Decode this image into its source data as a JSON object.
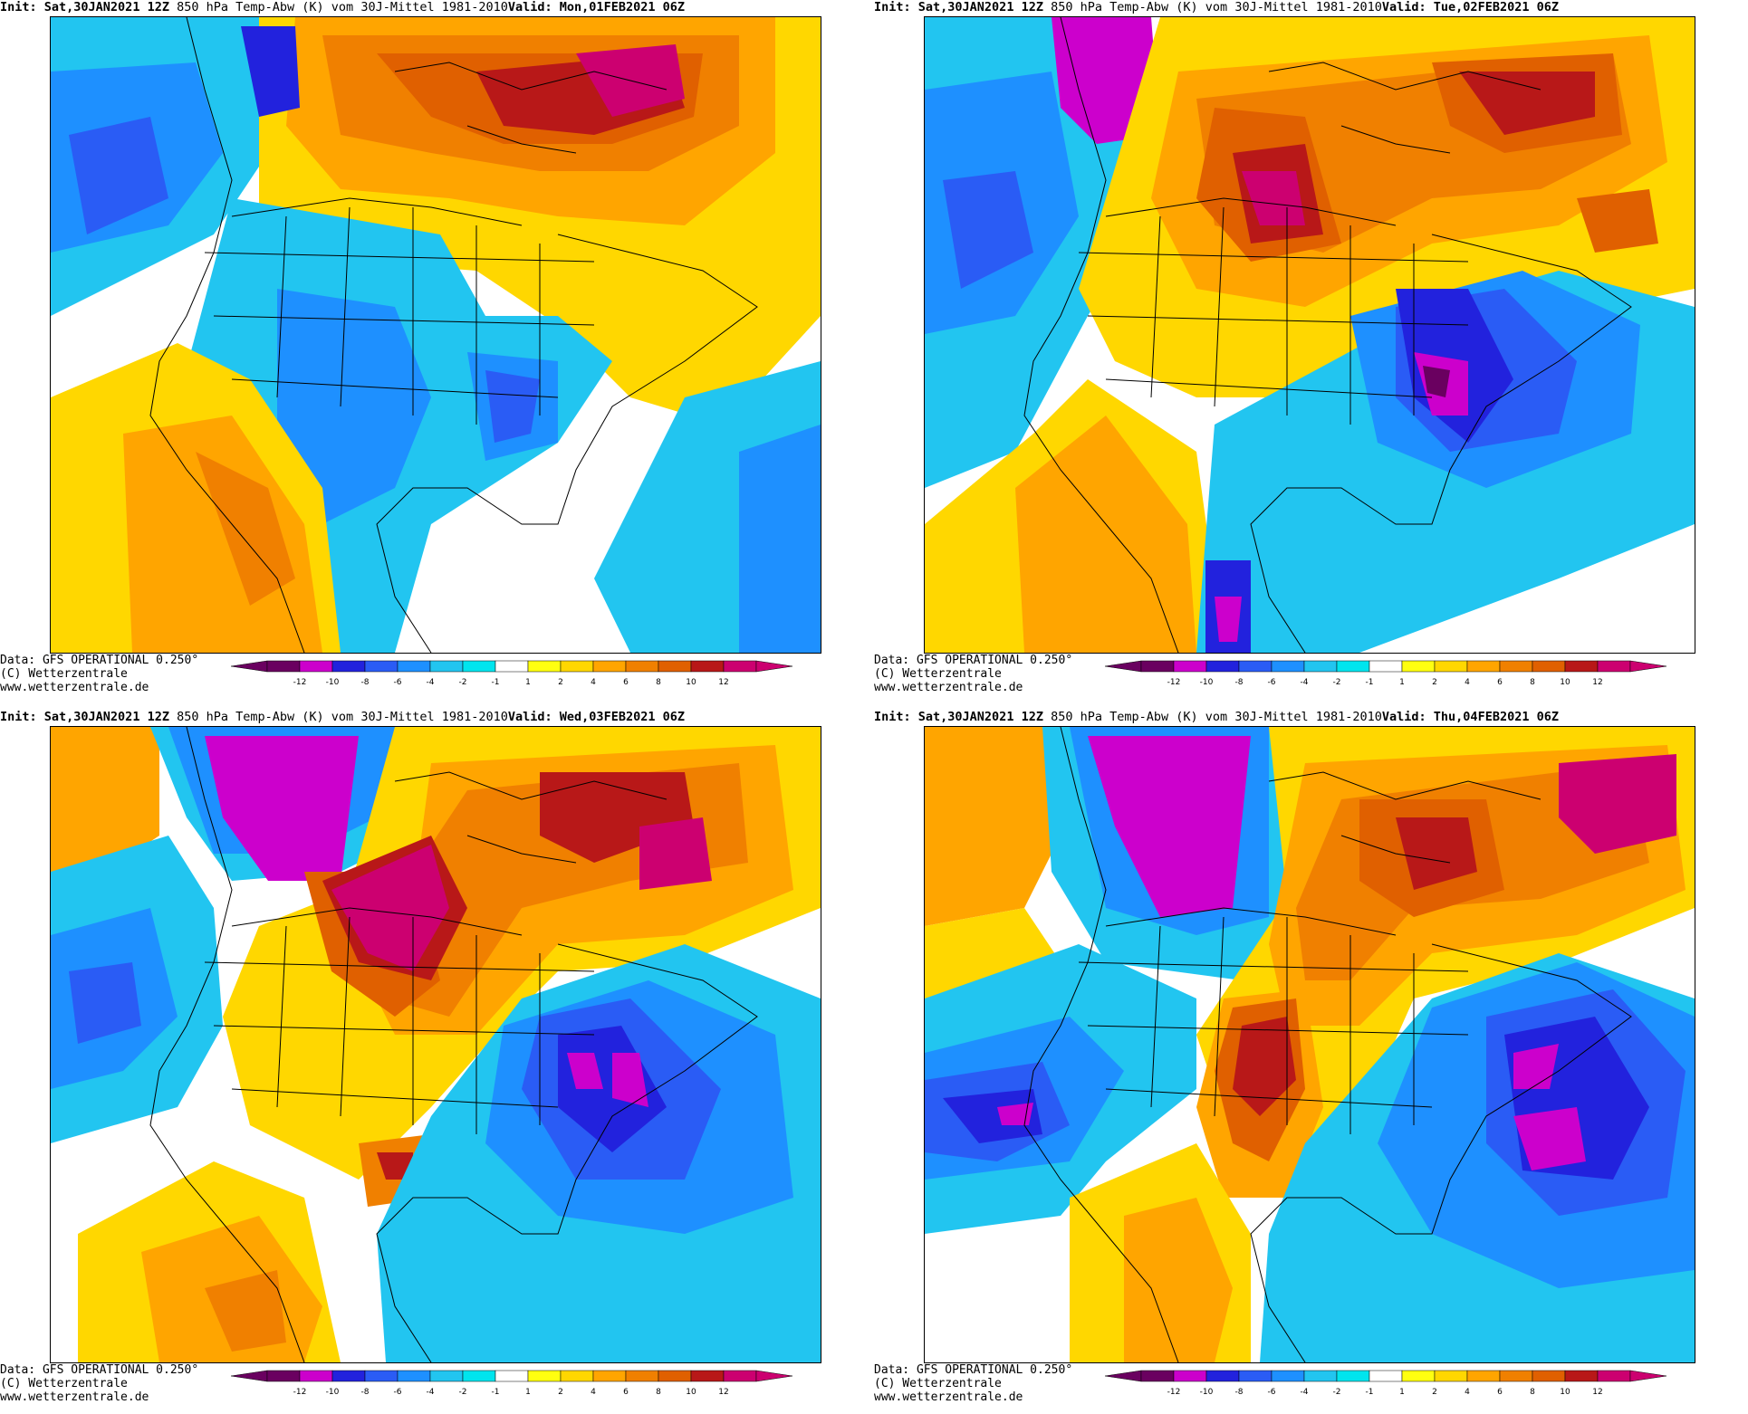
{
  "panels": [
    {
      "id": "p1",
      "init": "Sat,30JAN2021",
      "run": "12Z",
      "field": "850 hPa Temp-Abw (K) vom 30J-Mittel 1981-2010",
      "valid_label": "Valid:",
      "valid": "Mon,01FEB2021 06Z",
      "data_line": "Data: GFS OPERATIONAL 0.250°",
      "copyright": "(C) Wetterzentrale",
      "url": "www.wetterzentrale.de"
    },
    {
      "id": "p2",
      "init": "Sat,30JAN2021",
      "run": "12Z",
      "field": "850 hPa Temp-Abw (K) vom 30J-Mittel 1981-2010",
      "valid_label": "Valid:",
      "valid": "Tue,02FEB2021 06Z",
      "data_line": "Data: GFS OPERATIONAL 0.250°",
      "copyright": "(C) Wetterzentrale",
      "url": "www.wetterzentrale.de"
    },
    {
      "id": "p3",
      "init": "Sat,30JAN2021",
      "run": "12Z",
      "field": "850 hPa Temp-Abw (K) vom 30J-Mittel 1981-2010",
      "valid_label": "Valid:",
      "valid": "Wed,03FEB2021 06Z",
      "data_line": "Data: GFS OPERATIONAL 0.250°",
      "copyright": "(C) Wetterzentrale",
      "url": "www.wetterzentrale.de"
    },
    {
      "id": "p4",
      "init": "Sat,30JAN2021",
      "run": "12Z",
      "field": "850 hPa Temp-Abw (K) vom 30J-Mittel 1981-2010",
      "valid_label": "Valid:",
      "valid": "Thu,04FEB2021 06Z",
      "data_line": "Data: GFS OPERATIONAL 0.250°",
      "copyright": "(C) Wetterzentrale",
      "url": "www.wetterzentrale.de"
    }
  ],
  "init_label": "Init:",
  "legend": {
    "ticks": [
      "-12",
      "-10",
      "-8",
      "-6",
      "-4",
      "-2",
      "-1",
      "1",
      "2",
      "4",
      "6",
      "8",
      "10",
      "12"
    ],
    "colors": {
      "m12": "#6a0060",
      "m10": "#cc00cc",
      "m8": "#2222dd",
      "m6": "#2a5cf5",
      "m4": "#1e90ff",
      "m2": "#22c5f0",
      "m1": "#00e5ee",
      "p1": "#ffff10",
      "p2": "#ffd700",
      "p4": "#ffa500",
      "p6": "#f08000",
      "p8": "#e06000",
      "p10": "#b81818",
      "p12": "#cc0070"
    }
  }
}
